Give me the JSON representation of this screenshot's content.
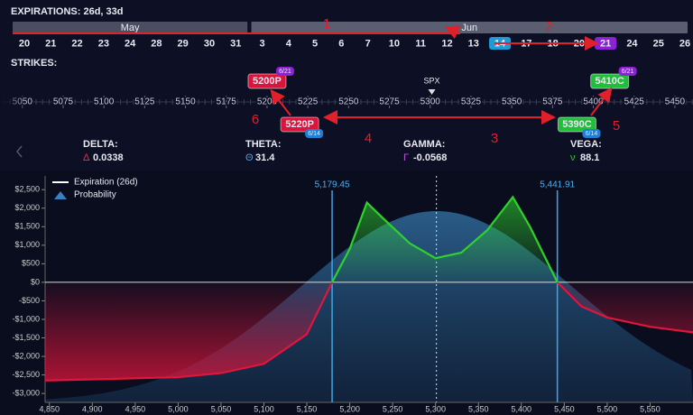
{
  "header": {
    "expirations": "EXPIRATIONS: 26d, 33d"
  },
  "calendar": {
    "months": [
      {
        "label": "May",
        "dates": [
          {
            "label": "20"
          },
          {
            "label": "21"
          },
          {
            "label": "22"
          },
          {
            "label": "23"
          },
          {
            "label": "24"
          },
          {
            "label": "28"
          },
          {
            "label": "29"
          },
          {
            "label": "30"
          },
          {
            "label": "31"
          }
        ]
      },
      {
        "label": "Jun",
        "dates": [
          {
            "label": "3"
          },
          {
            "label": "4"
          },
          {
            "label": "5"
          },
          {
            "label": "6"
          },
          {
            "label": "7"
          },
          {
            "label": "10"
          },
          {
            "label": "11"
          },
          {
            "label": "12"
          },
          {
            "label": "13"
          },
          {
            "label": "14",
            "color": "#1e9bd7"
          },
          {
            "label": "17"
          },
          {
            "label": "18"
          },
          {
            "label": "20"
          },
          {
            "label": "21",
            "color": "#8b22d6"
          },
          {
            "label": "24"
          },
          {
            "label": "25"
          },
          {
            "label": "26"
          }
        ]
      }
    ]
  },
  "strikes": {
    "label": "STRIKES:",
    "range": [
      5036.3,
      5461.1
    ],
    "underlying": "SPX",
    "ticks": [
      5050,
      5075,
      5100,
      5125,
      5150,
      5175,
      5200,
      5225,
      5250,
      5275,
      5300,
      5325,
      5350,
      5375,
      5400,
      5425,
      5450
    ],
    "legs": [
      {
        "label": "5200P",
        "strike": 5200,
        "expiry": "6/21",
        "color": "#d9153b",
        "tag_color": "#8b22d6"
      },
      {
        "label": "5220P",
        "strike": 5220,
        "expiry": "6/14",
        "color": "#d9153b",
        "tag_color": "#1e7fd7"
      },
      {
        "label": "5390C",
        "strike": 5390,
        "expiry": "6/14",
        "color": "#1fbf3a",
        "tag_color": "#1e7fd7"
      },
      {
        "label": "5410C",
        "strike": 5410,
        "expiry": "6/21",
        "color": "#1fbf3a",
        "tag_color": "#8b22d6"
      }
    ]
  },
  "annotations": [
    {
      "label": "1"
    },
    {
      "label": "2"
    },
    {
      "label": "3"
    },
    {
      "label": "4"
    },
    {
      "label": "5"
    },
    {
      "label": "6"
    }
  ],
  "greeks": [
    {
      "name": "DELTA:",
      "symbol": "Δ",
      "value": 0.0338,
      "color": "#e0304a"
    },
    {
      "name": "THETA:",
      "symbol": "Θ",
      "value": 31.4,
      "color": "#3fa0ff"
    },
    {
      "name": "GAMMA:",
      "symbol": "Γ",
      "value": -0.0568,
      "color": "#c050e0"
    },
    {
      "name": "VEGA:",
      "symbol": "ν",
      "value": 88.1,
      "color": "#30c040"
    }
  ],
  "chart_data": {
    "type": "line",
    "spot": 5301,
    "xlim": [
      4845,
      5600
    ],
    "ylim": [
      -3240,
      2870
    ],
    "xticks": [
      {
        "value": 4850,
        "label": "4,850"
      },
      {
        "value": 4900,
        "label": "4,900"
      },
      {
        "value": 4950,
        "label": "4,950"
      },
      {
        "value": 5000,
        "label": "5,000"
      },
      {
        "value": 5050,
        "label": "5,050"
      },
      {
        "value": 5100,
        "label": "5,100"
      },
      {
        "value": 5150,
        "label": "5,150"
      },
      {
        "value": 5200,
        "label": "5,200"
      },
      {
        "value": 5250,
        "label": "5,250"
      },
      {
        "value": 5300,
        "label": "5,300"
      },
      {
        "value": 5350,
        "label": "5,350"
      },
      {
        "value": 5400,
        "label": "5,400"
      },
      {
        "value": 5450,
        "label": "5,450"
      },
      {
        "value": 5500,
        "label": "5,500"
      },
      {
        "value": 5550,
        "label": "5,550"
      }
    ],
    "yticks": [
      {
        "value": 2500,
        "label": "$2,500"
      },
      {
        "value": 2000,
        "label": "$2,000"
      },
      {
        "value": 1500,
        "label": "$1,500"
      },
      {
        "value": 1000,
        "label": "$1,000"
      },
      {
        "value": 500,
        "label": "$500"
      },
      {
        "value": 0,
        "label": "$0"
      },
      {
        "value": -500,
        "label": "-$500"
      },
      {
        "value": -1000,
        "label": "-$1,000"
      },
      {
        "value": -1500,
        "label": "-$1,500"
      },
      {
        "value": -2000,
        "label": "-$2,000"
      },
      {
        "value": -2500,
        "label": "-$2,500"
      },
      {
        "value": -3000,
        "label": "-$3,000"
      }
    ],
    "breakevens": [
      {
        "value": 5179.45,
        "label": "5,179.45"
      },
      {
        "value": 5441.91,
        "label": "5,441.91"
      }
    ],
    "probability": "Probability",
    "series": [
      {
        "name": "Expiration (26d)",
        "color_up": "#2ed12e",
        "color_down": "#e0153c",
        "x": [
          4845,
          4900,
          5000,
          5050,
          5100,
          5150,
          5179.45,
          5200,
          5220,
          5240,
          5270,
          5300,
          5330,
          5360,
          5390,
          5410,
          5441.91,
          5470,
          5500,
          5550,
          5600
        ],
        "values": [
          -2650,
          -2620,
          -2560,
          -2450,
          -2200,
          -1400,
          0,
          900,
          2150,
          1700,
          1050,
          650,
          800,
          1400,
          2300,
          1500,
          0,
          -650,
          -950,
          -1200,
          -1350
        ]
      }
    ]
  }
}
